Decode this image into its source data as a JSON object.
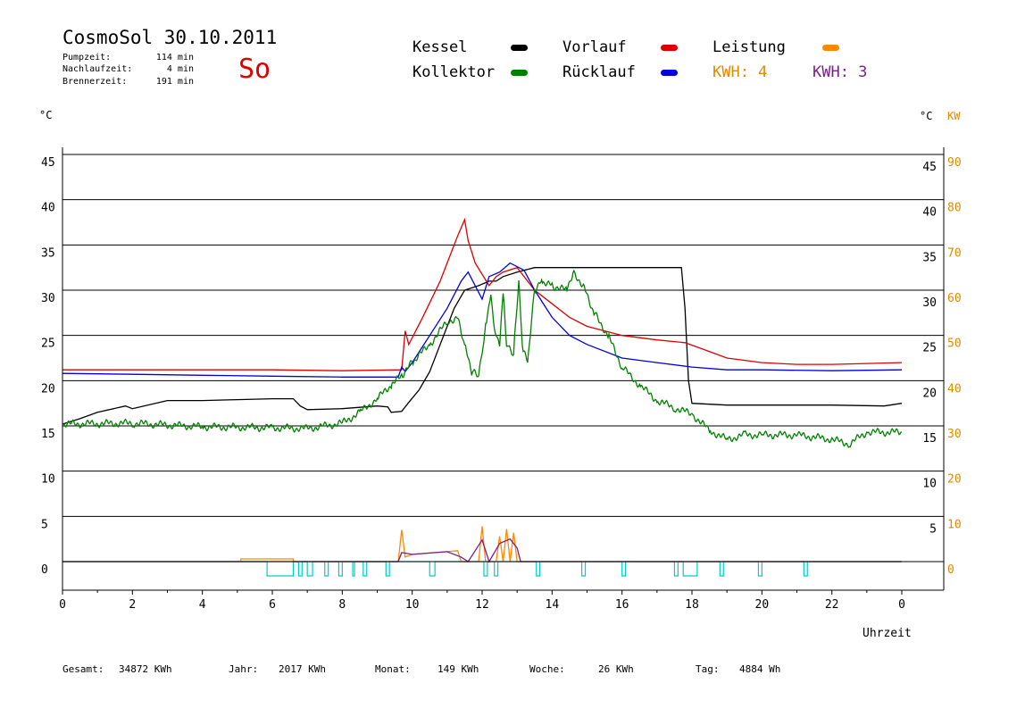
{
  "header": {
    "title": "CosmoSol 30.10.2011",
    "day": "So",
    "stats": [
      {
        "label": "Pumpzeit:",
        "value": "114 min"
      },
      {
        "label": "Nachlaufzeit:",
        "value": "4 min"
      },
      {
        "label": "Brennerzeit:",
        "value": "191 min"
      }
    ]
  },
  "legend": {
    "kessel": {
      "label": "Kessel",
      "color": "#000000"
    },
    "vorlauf": {
      "label": "Vorlauf",
      "color": "#dd0000"
    },
    "leistung": {
      "label": "Leistung",
      "color": "#ff8800"
    },
    "kollektor": {
      "label": "Kollektor",
      "color": "#008000"
    },
    "ruecklauf": {
      "label": "Rücklauf",
      "color": "#0000dd"
    },
    "kwh1": {
      "label": "KWH: 4",
      "color": "#e08a00"
    },
    "kwh2": {
      "label": "KWH: 3",
      "color": "#7a1f8a"
    }
  },
  "axes": {
    "left_unit": "°C",
    "right_unit": "°C",
    "right_unit2": "KW",
    "x_label": "Uhrzeit"
  },
  "footer": [
    {
      "label": "Gesamt:",
      "value": "34872 KWh"
    },
    {
      "label": "Jahr:",
      "value": "2017 KWh"
    },
    {
      "label": "Monat:",
      "value": "149 KWh"
    },
    {
      "label": "Woche:",
      "value": "26 KWh"
    },
    {
      "label": "Tag:",
      "value": "4884 Wh"
    }
  ],
  "chart_data": {
    "type": "line",
    "xlabel": "Uhrzeit",
    "ylabel": "°C",
    "x_ticks": [
      "0",
      "2",
      "4",
      "6",
      "8",
      "10",
      "12",
      "14",
      "16",
      "18",
      "20",
      "22",
      "0"
    ],
    "x_range_hours": [
      0,
      24
    ],
    "ylim": [
      0,
      45
    ],
    "y_ticks_left": [
      0,
      5,
      10,
      15,
      20,
      25,
      30,
      35,
      40,
      45
    ],
    "y_ticks_right_temp": [
      5,
      10,
      15,
      20,
      25,
      30,
      35,
      40,
      45
    ],
    "y_ticks_right_kw": [
      0,
      10,
      20,
      30,
      40,
      50,
      60,
      70,
      80,
      90
    ],
    "grid": true,
    "series": [
      {
        "name": "Kessel",
        "color": "#000000",
        "points": [
          [
            0,
            15.2
          ],
          [
            0.5,
            15.8
          ],
          [
            1,
            16.5
          ],
          [
            1.8,
            17.2
          ],
          [
            2,
            16.9
          ],
          [
            3,
            17.8
          ],
          [
            4,
            17.8
          ],
          [
            5,
            17.9
          ],
          [
            6,
            18
          ],
          [
            6.6,
            18
          ],
          [
            6.8,
            17.2
          ],
          [
            7,
            16.8
          ],
          [
            8,
            16.9
          ],
          [
            9,
            17.2
          ],
          [
            9.3,
            17.1
          ],
          [
            9.4,
            16.5
          ],
          [
            9.7,
            16.6
          ],
          [
            9.9,
            17.6
          ],
          [
            10.2,
            19
          ],
          [
            10.5,
            21
          ],
          [
            10.8,
            24
          ],
          [
            11.2,
            28
          ],
          [
            11.5,
            30
          ],
          [
            11.9,
            30.5
          ],
          [
            12.2,
            31
          ],
          [
            12.4,
            31
          ],
          [
            12.6,
            31.5
          ],
          [
            13,
            32
          ],
          [
            13.5,
            32.5
          ],
          [
            15,
            32.5
          ],
          [
            17.5,
            32.5
          ],
          [
            17.7,
            32.5
          ],
          [
            17.8,
            28
          ],
          [
            17.9,
            20
          ],
          [
            18,
            17.5
          ],
          [
            19,
            17.3
          ],
          [
            22,
            17.3
          ],
          [
            23.5,
            17.2
          ],
          [
            24,
            17.5
          ]
        ]
      },
      {
        "name": "Vorlauf",
        "color": "#dd0000",
        "points": [
          [
            0,
            21.2
          ],
          [
            2,
            21.2
          ],
          [
            6,
            21.2
          ],
          [
            8,
            21.1
          ],
          [
            9.7,
            21.2
          ],
          [
            9.8,
            25.5
          ],
          [
            9.9,
            24
          ],
          [
            10.3,
            27
          ],
          [
            10.8,
            31
          ],
          [
            11,
            33
          ],
          [
            11.3,
            36
          ],
          [
            11.5,
            37.8
          ],
          [
            11.6,
            35.5
          ],
          [
            11.8,
            33
          ],
          [
            12.2,
            30.5
          ],
          [
            12.4,
            31.5
          ],
          [
            12.6,
            32
          ],
          [
            13,
            32.5
          ],
          [
            13.5,
            30
          ],
          [
            14,
            28.5
          ],
          [
            14.5,
            27
          ],
          [
            15,
            26
          ],
          [
            15.5,
            25.5
          ],
          [
            16,
            25
          ],
          [
            17,
            24.5
          ],
          [
            17.8,
            24.2
          ],
          [
            18.3,
            23.5
          ],
          [
            19,
            22.5
          ],
          [
            20,
            22
          ],
          [
            21,
            21.8
          ],
          [
            22,
            21.8
          ],
          [
            23,
            21.9
          ],
          [
            24,
            22
          ]
        ]
      },
      {
        "name": "Rücklauf",
        "color": "#0000dd",
        "points": [
          [
            0,
            20.8
          ],
          [
            2,
            20.7
          ],
          [
            4,
            20.6
          ],
          [
            6,
            20.5
          ],
          [
            8,
            20.4
          ],
          [
            9.6,
            20.4
          ],
          [
            9.7,
            21.5
          ],
          [
            9.8,
            21
          ],
          [
            10,
            22
          ],
          [
            10.5,
            25
          ],
          [
            11,
            28
          ],
          [
            11.4,
            31
          ],
          [
            11.6,
            32
          ],
          [
            12,
            29
          ],
          [
            12.2,
            31.5
          ],
          [
            12.5,
            32
          ],
          [
            12.8,
            33
          ],
          [
            13.2,
            32.2
          ],
          [
            13.5,
            30
          ],
          [
            14,
            27
          ],
          [
            14.5,
            25
          ],
          [
            15,
            24
          ],
          [
            16,
            22.5
          ],
          [
            17,
            22
          ],
          [
            18,
            21.5
          ],
          [
            19,
            21.2
          ],
          [
            20,
            21.2
          ],
          [
            22,
            21.1
          ],
          [
            24,
            21.2
          ]
        ]
      },
      {
        "name": "Kollektor",
        "color": "#008000",
        "points": [
          [
            0,
            15.2
          ],
          [
            2,
            15.3
          ],
          [
            4,
            14.9
          ],
          [
            6,
            14.8
          ],
          [
            7,
            14.7
          ],
          [
            8,
            15.3
          ],
          [
            8.5,
            16.5
          ],
          [
            9,
            18
          ],
          [
            9.4,
            19.5
          ],
          [
            9.7,
            20.5
          ],
          [
            10,
            22
          ],
          [
            10.5,
            24
          ],
          [
            11,
            26.5
          ],
          [
            11.3,
            27
          ],
          [
            11.5,
            24
          ],
          [
            11.7,
            21
          ],
          [
            11.9,
            20.5
          ],
          [
            12,
            23
          ],
          [
            12.1,
            26
          ],
          [
            12.25,
            29.5
          ],
          [
            12.35,
            26
          ],
          [
            12.5,
            24
          ],
          [
            12.6,
            30
          ],
          [
            12.7,
            24
          ],
          [
            12.9,
            23
          ],
          [
            13.05,
            31
          ],
          [
            13.15,
            23.5
          ],
          [
            13.3,
            22
          ],
          [
            13.5,
            30
          ],
          [
            13.7,
            31
          ],
          [
            14,
            30.5
          ],
          [
            14.4,
            30
          ],
          [
            14.6,
            32
          ],
          [
            14.9,
            30.5
          ],
          [
            15.2,
            27.5
          ],
          [
            15.6,
            25
          ],
          [
            16,
            21.5
          ],
          [
            16.5,
            19.5
          ],
          [
            17,
            17.8
          ],
          [
            17.5,
            17
          ],
          [
            18,
            16.3
          ],
          [
            18.5,
            14.5
          ],
          [
            19,
            13.5
          ],
          [
            19.5,
            14
          ],
          [
            20,
            14
          ],
          [
            21,
            14
          ],
          [
            22,
            13.5
          ],
          [
            22.5,
            13
          ],
          [
            23,
            14.3
          ],
          [
            24,
            14.3
          ]
        ]
      },
      {
        "name": "Leistung",
        "color": "#ff8800",
        "points": [
          [
            0,
            0
          ],
          [
            5.1,
            0
          ],
          [
            5.1,
            0.3
          ],
          [
            6.6,
            0.3
          ],
          [
            6.6,
            0
          ],
          [
            9.6,
            0
          ],
          [
            9.7,
            3.5
          ],
          [
            9.8,
            0.5
          ],
          [
            10,
            0.8
          ],
          [
            11.3,
            1.2
          ],
          [
            11.4,
            0
          ],
          [
            11.9,
            0
          ],
          [
            12,
            3.9
          ],
          [
            12.1,
            0
          ],
          [
            12.4,
            0
          ],
          [
            12.5,
            2.8
          ],
          [
            12.6,
            0
          ],
          [
            12.7,
            3.6
          ],
          [
            12.8,
            0
          ],
          [
            12.9,
            3.2
          ],
          [
            13,
            0
          ],
          [
            24,
            0
          ]
        ]
      },
      {
        "name": "KWH 4",
        "color": "#e08a00",
        "values": [],
        "total_label": "KWH: 4"
      },
      {
        "name": "KWH 3",
        "color": "#7a1f8a",
        "points": [
          [
            0,
            0
          ],
          [
            9.6,
            0
          ],
          [
            9.7,
            1
          ],
          [
            10,
            0.8
          ],
          [
            11,
            1.1
          ],
          [
            11.4,
            0.5
          ],
          [
            11.6,
            0
          ],
          [
            12,
            2.4
          ],
          [
            12.2,
            0
          ],
          [
            12.5,
            2
          ],
          [
            12.8,
            2.5
          ],
          [
            13,
            1.5
          ],
          [
            13.1,
            0
          ],
          [
            24,
            0
          ]
        ]
      },
      {
        "name": "Pumpe",
        "color": "#00cccc",
        "pulses_hours": [
          [
            5.85,
            6.6
          ],
          [
            6.75,
            6.85
          ],
          [
            7.0,
            7.15
          ],
          [
            7.5,
            7.6
          ],
          [
            7.9,
            8.0
          ],
          [
            8.3,
            8.35
          ],
          [
            8.6,
            8.7
          ],
          [
            9.25,
            9.35
          ],
          [
            10.5,
            10.65
          ],
          [
            12.05,
            12.15
          ],
          [
            12.35,
            12.45
          ],
          [
            13.55,
            13.65
          ],
          [
            14.85,
            14.95
          ],
          [
            16.0,
            16.1
          ],
          [
            17.5,
            17.6
          ],
          [
            17.75,
            18.15
          ],
          [
            18.8,
            18.9
          ],
          [
            19.9,
            20.0
          ],
          [
            21.2,
            21.3
          ]
        ]
      }
    ]
  }
}
